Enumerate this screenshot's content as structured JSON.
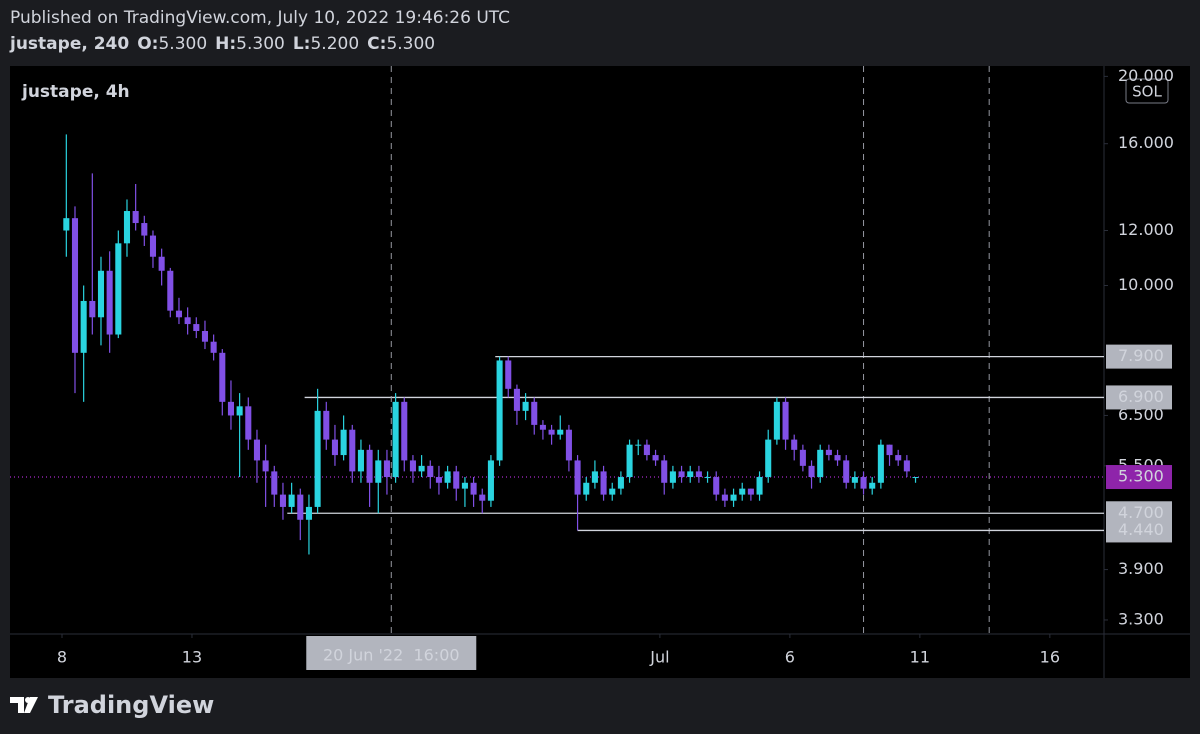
{
  "header": {
    "published": "Published on TradingView.com, July 10, 2022 19:46:26 UTC",
    "symbol_interval": "justape, 240",
    "ohlc": [
      {
        "label": "O:",
        "value": "5.300"
      },
      {
        "label": "H:",
        "value": "5.300"
      },
      {
        "label": "L:",
        "value": "5.200"
      },
      {
        "label": "C:",
        "value": "5.300"
      }
    ]
  },
  "footer": {
    "brand": "TradingView"
  },
  "chart_data": {
    "type": "candlestick",
    "legend": "justape, 4h",
    "currency": "SOL",
    "log_scale": true,
    "up_color": "#2ad4e0",
    "down_color": "#8150e6",
    "last_price_color": "#8e24aa",
    "ylim": [
      3.15,
      20.7
    ],
    "yticks": [
      {
        "value": 20,
        "label": "20.000"
      },
      {
        "value": 16,
        "label": "16.000"
      },
      {
        "value": 12,
        "label": "12.000"
      },
      {
        "value": 10,
        "label": "10.000"
      },
      {
        "value": 6.5,
        "label": "6.500"
      },
      {
        "value": 5.5,
        "label": "5.500"
      },
      {
        "value": 3.9,
        "label": "3.900"
      },
      {
        "value": 3.3,
        "label": "3.300"
      }
    ],
    "xlim": [
      "2022-06-06 00:00",
      "2022-07-18 02:00"
    ],
    "xticks": [
      {
        "value": "2022-06-08 00:00",
        "label": "8"
      },
      {
        "value": "2022-06-13 00:00",
        "label": "13"
      },
      {
        "value": "2022-07-01 00:00",
        "label": "Jul"
      },
      {
        "value": "2022-07-06 00:00",
        "label": "6"
      },
      {
        "value": "2022-07-11 00:00",
        "label": "11"
      },
      {
        "value": "2022-07-16 00:00",
        "label": "16"
      }
    ],
    "levels": [
      {
        "value": 7.9,
        "label": "7.900",
        "start": "2022-06-24 16:00"
      },
      {
        "value": 6.9,
        "label": "6.900",
        "start": "2022-06-17 08:00"
      },
      {
        "value": 4.7,
        "label": "4.700",
        "start": "2022-06-16 16:00"
      },
      {
        "value": 4.44,
        "label": "4.440",
        "start": "2022-06-27 20:00"
      }
    ],
    "last_price": {
      "value": 5.3,
      "label": "5.300"
    },
    "vertical_lines": [
      "2022-07-08 20:00",
      "2022-07-13 16:00"
    ],
    "crosshair": {
      "x": "2022-06-20 16:00",
      "label": "20 Jun '22  16:00"
    },
    "x": [
      "2022-06-08 00:00",
      "2022-06-08 08:00",
      "2022-06-08 16:00",
      "2022-06-09 00:00",
      "2022-06-09 08:00",
      "2022-06-09 16:00",
      "2022-06-10 00:00",
      "2022-06-10 08:00",
      "2022-06-10 16:00",
      "2022-06-11 00:00",
      "2022-06-11 08:00",
      "2022-06-11 16:00",
      "2022-06-12 00:00",
      "2022-06-12 08:00",
      "2022-06-12 16:00",
      "2022-06-13 00:00",
      "2022-06-13 08:00",
      "2022-06-13 16:00",
      "2022-06-14 00:00",
      "2022-06-14 08:00",
      "2022-06-14 16:00",
      "2022-06-15 00:00",
      "2022-06-15 08:00",
      "2022-06-15 16:00",
      "2022-06-16 00:00",
      "2022-06-16 08:00",
      "2022-06-16 16:00",
      "2022-06-17 00:00",
      "2022-06-17 08:00",
      "2022-06-17 16:00",
      "2022-06-18 00:00",
      "2022-06-18 08:00",
      "2022-06-18 16:00",
      "2022-06-19 00:00",
      "2022-06-19 08:00",
      "2022-06-19 16:00",
      "2022-06-20 00:00",
      "2022-06-20 08:00",
      "2022-06-20 16:00",
      "2022-06-21 00:00",
      "2022-06-21 08:00",
      "2022-06-21 16:00",
      "2022-06-22 00:00",
      "2022-06-22 08:00",
      "2022-06-22 16:00",
      "2022-06-23 00:00",
      "2022-06-23 08:00",
      "2022-06-23 16:00",
      "2022-06-24 00:00",
      "2022-06-24 08:00",
      "2022-06-24 16:00",
      "2022-06-25 00:00",
      "2022-06-25 08:00",
      "2022-06-25 16:00",
      "2022-06-26 00:00",
      "2022-06-26 08:00",
      "2022-06-26 16:00",
      "2022-06-27 00:00",
      "2022-06-27 08:00",
      "2022-06-27 16:00",
      "2022-06-28 00:00",
      "2022-06-28 08:00",
      "2022-06-28 16:00",
      "2022-06-29 00:00",
      "2022-06-29 08:00",
      "2022-06-29 16:00",
      "2022-06-30 00:00",
      "2022-06-30 08:00",
      "2022-06-30 16:00",
      "2022-07-01 00:00",
      "2022-07-01 08:00",
      "2022-07-01 16:00",
      "2022-07-02 00:00",
      "2022-07-02 08:00",
      "2022-07-02 16:00",
      "2022-07-03 00:00",
      "2022-07-03 08:00",
      "2022-07-03 16:00",
      "2022-07-04 00:00",
      "2022-07-04 08:00",
      "2022-07-04 16:00",
      "2022-07-05 00:00",
      "2022-07-05 08:00",
      "2022-07-05 16:00",
      "2022-07-06 00:00",
      "2022-07-06 08:00",
      "2022-07-06 16:00",
      "2022-07-07 00:00",
      "2022-07-07 08:00",
      "2022-07-07 16:00",
      "2022-07-08 00:00",
      "2022-07-08 08:00",
      "2022-07-08 16:00",
      "2022-07-09 00:00",
      "2022-07-09 08:00",
      "2022-07-09 16:00",
      "2022-07-10 00:00",
      "2022-07-10 08:00",
      "2022-07-10 16:00"
    ],
    "ohlc": [
      [
        12.0,
        16.5,
        11.0,
        12.5
      ],
      [
        12.5,
        13.0,
        7.0,
        8.0
      ],
      [
        8.0,
        10.0,
        6.8,
        9.5
      ],
      [
        9.5,
        14.5,
        8.5,
        9.0
      ],
      [
        9.0,
        11.0,
        8.2,
        10.5
      ],
      [
        10.5,
        11.2,
        8.0,
        8.5
      ],
      [
        8.5,
        12.0,
        8.4,
        11.5
      ],
      [
        11.5,
        13.3,
        11.0,
        12.8
      ],
      [
        12.8,
        14.0,
        12.0,
        12.3
      ],
      [
        12.3,
        12.6,
        11.4,
        11.8
      ],
      [
        11.8,
        12.0,
        10.6,
        11.0
      ],
      [
        11.0,
        11.3,
        10.0,
        10.5
      ],
      [
        10.5,
        10.6,
        9.0,
        9.2
      ],
      [
        9.2,
        9.6,
        8.8,
        9.0
      ],
      [
        9.0,
        9.3,
        8.5,
        8.8
      ],
      [
        8.8,
        9.0,
        8.4,
        8.6
      ],
      [
        8.6,
        8.9,
        8.1,
        8.3
      ],
      [
        8.3,
        8.5,
        7.8,
        8.0
      ],
      [
        8.0,
        8.1,
        6.5,
        6.8
      ],
      [
        6.8,
        7.3,
        6.2,
        6.5
      ],
      [
        6.5,
        7.0,
        5.3,
        6.7
      ],
      [
        6.7,
        6.9,
        5.8,
        6.0
      ],
      [
        6.0,
        6.2,
        5.2,
        5.6
      ],
      [
        5.6,
        5.9,
        4.8,
        5.4
      ],
      [
        5.4,
        5.5,
        4.8,
        5.0
      ],
      [
        5.0,
        5.2,
        4.6,
        4.8
      ],
      [
        4.8,
        5.2,
        4.7,
        5.0
      ],
      [
        5.0,
        5.1,
        4.3,
        4.6
      ],
      [
        4.6,
        5.0,
        4.1,
        4.8
      ],
      [
        4.8,
        7.1,
        4.7,
        6.6
      ],
      [
        6.6,
        6.8,
        5.8,
        6.0
      ],
      [
        6.0,
        6.3,
        5.5,
        5.7
      ],
      [
        5.7,
        6.5,
        5.6,
        6.2
      ],
      [
        6.2,
        6.3,
        5.2,
        5.4
      ],
      [
        5.4,
        6.0,
        5.2,
        5.8
      ],
      [
        5.8,
        5.9,
        4.8,
        5.2
      ],
      [
        5.2,
        5.8,
        4.7,
        5.6
      ],
      [
        5.6,
        5.8,
        5.0,
        5.3
      ],
      [
        5.3,
        7.0,
        5.2,
        6.8
      ],
      [
        6.8,
        6.9,
        5.4,
        5.6
      ],
      [
        5.6,
        5.7,
        5.2,
        5.4
      ],
      [
        5.4,
        5.7,
        5.3,
        5.5
      ],
      [
        5.5,
        5.6,
        5.1,
        5.3
      ],
      [
        5.3,
        5.5,
        5.0,
        5.2
      ],
      [
        5.2,
        5.5,
        5.1,
        5.4
      ],
      [
        5.4,
        5.5,
        4.9,
        5.1
      ],
      [
        5.1,
        5.3,
        4.8,
        5.2
      ],
      [
        5.2,
        5.3,
        4.8,
        5.0
      ],
      [
        5.0,
        5.1,
        4.7,
        4.9
      ],
      [
        4.9,
        5.7,
        4.8,
        5.6
      ],
      [
        5.6,
        7.9,
        5.5,
        7.8
      ],
      [
        7.8,
        7.9,
        6.9,
        7.1
      ],
      [
        7.1,
        7.2,
        6.3,
        6.6
      ],
      [
        6.6,
        7.0,
        6.4,
        6.8
      ],
      [
        6.8,
        6.9,
        6.1,
        6.3
      ],
      [
        6.3,
        6.4,
        6.0,
        6.2
      ],
      [
        6.2,
        6.3,
        5.9,
        6.1
      ],
      [
        6.1,
        6.5,
        6.0,
        6.2
      ],
      [
        6.2,
        6.3,
        5.4,
        5.6
      ],
      [
        5.6,
        5.7,
        4.44,
        5.0
      ],
      [
        5.0,
        5.3,
        4.9,
        5.2
      ],
      [
        5.2,
        5.6,
        5.1,
        5.4
      ],
      [
        5.4,
        5.5,
        4.9,
        5.0
      ],
      [
        5.0,
        5.2,
        4.9,
        5.1
      ],
      [
        5.1,
        5.4,
        5.0,
        5.3
      ],
      [
        5.3,
        6.0,
        5.2,
        5.9
      ],
      [
        5.9,
        6.0,
        5.7,
        5.9
      ],
      [
        5.9,
        6.0,
        5.6,
        5.7
      ],
      [
        5.7,
        5.8,
        5.5,
        5.6
      ],
      [
        5.6,
        5.7,
        5.0,
        5.2
      ],
      [
        5.2,
        5.5,
        5.1,
        5.4
      ],
      [
        5.4,
        5.5,
        5.2,
        5.3
      ],
      [
        5.3,
        5.5,
        5.2,
        5.4
      ],
      [
        5.4,
        5.5,
        5.2,
        5.3
      ],
      [
        5.3,
        5.4,
        5.2,
        5.3
      ],
      [
        5.3,
        5.4,
        4.9,
        5.0
      ],
      [
        5.0,
        5.1,
        4.8,
        4.9
      ],
      [
        4.9,
        5.1,
        4.8,
        5.0
      ],
      [
        5.0,
        5.2,
        4.9,
        5.1
      ],
      [
        5.1,
        5.1,
        4.9,
        5.0
      ],
      [
        5.0,
        5.4,
        4.9,
        5.3
      ],
      [
        5.3,
        6.2,
        5.2,
        6.0
      ],
      [
        6.0,
        6.9,
        5.9,
        6.8
      ],
      [
        6.8,
        6.9,
        5.8,
        6.0
      ],
      [
        6.0,
        6.1,
        5.6,
        5.8
      ],
      [
        5.8,
        5.9,
        5.4,
        5.5
      ],
      [
        5.5,
        5.6,
        5.1,
        5.3
      ],
      [
        5.3,
        5.9,
        5.2,
        5.8
      ],
      [
        5.8,
        5.9,
        5.6,
        5.7
      ],
      [
        5.7,
        5.8,
        5.5,
        5.6
      ],
      [
        5.6,
        5.7,
        5.1,
        5.2
      ],
      [
        5.2,
        5.4,
        5.1,
        5.3
      ],
      [
        5.3,
        5.4,
        5.0,
        5.1
      ],
      [
        5.1,
        5.3,
        5.0,
        5.2
      ],
      [
        5.2,
        6.0,
        5.1,
        5.9
      ],
      [
        5.9,
        5.9,
        5.5,
        5.7
      ],
      [
        5.7,
        5.8,
        5.5,
        5.6
      ],
      [
        5.6,
        5.7,
        5.3,
        5.4
      ],
      [
        5.3,
        5.3,
        5.2,
        5.3
      ]
    ]
  }
}
